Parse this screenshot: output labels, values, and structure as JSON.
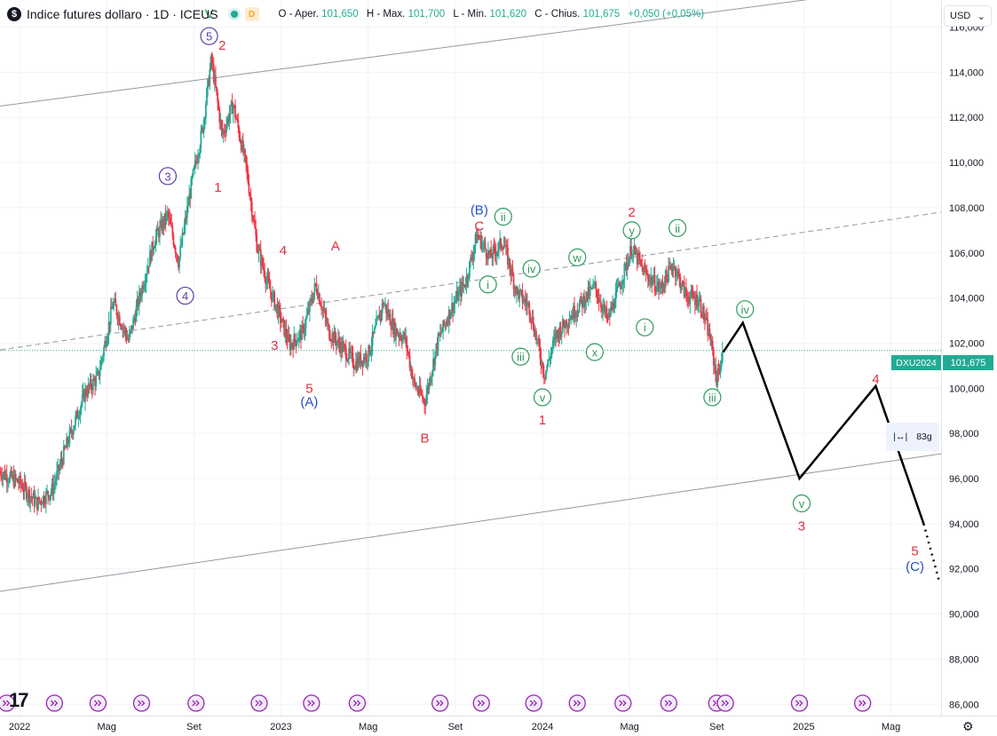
{
  "legend": {
    "symbol_badge": "$",
    "title": "Indice futures dollaro · 1D · ICEUS",
    "status_letter": "D",
    "open_label": "O - Aper.",
    "open_value": "101,650",
    "high_label": "H - Max.",
    "high_value": "101,700",
    "low_label": "L - Min.",
    "low_value": "101,620",
    "close_label": "C - Chius.",
    "close_value": "101,675",
    "change_value": "+0,050 (+0,05%)"
  },
  "currency_selector": "USD",
  "current_price_tag": "101,675",
  "symbol_tag": "DXU2024",
  "range_widget": {
    "icon": "range-arrows-icon",
    "label": "83g"
  },
  "colors": {
    "up": "#22ab94",
    "down": "#f23645",
    "grid": "#f0f3fa",
    "wave_red": "#e0303f",
    "wave_purple": "#5b3fa8",
    "wave_green": "#2e9a5c",
    "wave_blue": "#2a4fc1",
    "projection": "#000000"
  },
  "chart_data": {
    "type": "candlestick",
    "title": "Indice futures dollaro",
    "interval": "1D",
    "exchange": "ICEUS",
    "ylim": [
      85500,
      117200
    ],
    "y_ticks": [
      "116,000",
      "114,000",
      "112,000",
      "110,000",
      "108,000",
      "106,000",
      "104,000",
      "102,000",
      "100,000",
      "98,000",
      "96,000",
      "94,000",
      "92,000",
      "90,000",
      "88,000",
      "86,000"
    ],
    "y_tick_values": [
      116000,
      114000,
      112000,
      110000,
      108000,
      106000,
      104000,
      102000,
      100000,
      98000,
      96000,
      94000,
      92000,
      90000,
      88000,
      86000
    ],
    "x_ticks": [
      {
        "label": "2022",
        "t": 0
      },
      {
        "label": "Mag",
        "t": 4
      },
      {
        "label": "Set",
        "t": 8
      },
      {
        "label": "2023",
        "t": 12
      },
      {
        "label": "Mag",
        "t": 16
      },
      {
        "label": "Set",
        "t": 20
      },
      {
        "label": "2024",
        "t": 24
      },
      {
        "label": "Mag",
        "t": 28
      },
      {
        "label": "Set",
        "t": 32
      },
      {
        "label": "2025",
        "t": 36
      },
      {
        "label": "Mag",
        "t": 40
      }
    ],
    "x_unit": "months since 2022-01",
    "xlim": [
      -0.9,
      42.3
    ],
    "price_path": [
      [
        -0.9,
        96300
      ],
      [
        0.0,
        95800
      ],
      [
        0.8,
        94900
      ],
      [
        1.5,
        95500
      ],
      [
        2.2,
        97600
      ],
      [
        3.0,
        99800
      ],
      [
        3.6,
        100500
      ],
      [
        4.3,
        103800
      ],
      [
        5.0,
        102100
      ],
      [
        5.6,
        104400
      ],
      [
        6.2,
        106600
      ],
      [
        6.8,
        107700
      ],
      [
        7.3,
        105600
      ],
      [
        7.9,
        109100
      ],
      [
        8.4,
        111500
      ],
      [
        8.8,
        114600
      ],
      [
        9.3,
        111200
      ],
      [
        9.8,
        112600
      ],
      [
        10.4,
        109800
      ],
      [
        10.9,
        106300
      ],
      [
        11.4,
        104600
      ],
      [
        11.9,
        103300
      ],
      [
        12.4,
        101900
      ],
      [
        13.0,
        102500
      ],
      [
        13.6,
        104600
      ],
      [
        14.2,
        102500
      ],
      [
        14.8,
        101800
      ],
      [
        15.4,
        101100
      ],
      [
        16.0,
        101500
      ],
      [
        16.7,
        103800
      ],
      [
        17.2,
        102600
      ],
      [
        17.7,
        102200
      ],
      [
        18.1,
        100200
      ],
      [
        18.6,
        99400
      ],
      [
        19.2,
        102100
      ],
      [
        19.8,
        103500
      ],
      [
        20.5,
        104800
      ],
      [
        21.0,
        106800
      ],
      [
        21.6,
        105800
      ],
      [
        22.2,
        106500
      ],
      [
        22.8,
        104300
      ],
      [
        23.4,
        103600
      ],
      [
        24.1,
        100600
      ],
      [
        24.6,
        102300
      ],
      [
        25.2,
        103100
      ],
      [
        25.8,
        103800
      ],
      [
        26.4,
        104500
      ],
      [
        27.0,
        103000
      ],
      [
        27.6,
        104700
      ],
      [
        28.1,
        106200
      ],
      [
        28.7,
        105100
      ],
      [
        29.4,
        104400
      ],
      [
        30.0,
        105500
      ],
      [
        30.6,
        104100
      ],
      [
        31.2,
        103900
      ],
      [
        31.7,
        102200
      ],
      [
        32.0,
        100400
      ],
      [
        32.3,
        101600
      ]
    ],
    "projection": [
      {
        "t": 32.3,
        "v": 101600
      },
      {
        "t": 33.2,
        "v": 102900
      },
      {
        "t": 35.8,
        "v": 96000
      },
      {
        "t": 39.3,
        "v": 100100
      },
      {
        "t": 41.5,
        "v": 94000
      }
    ],
    "projection_dotted_end": {
      "t": 42.2,
      "v": 91500
    },
    "channel_upper": {
      "from": {
        "t": -0.9,
        "v": 112500
      },
      "to": {
        "t": 42.3,
        "v": 118000
      }
    },
    "channel_lower": {
      "from": {
        "t": -0.9,
        "v": 91000
      },
      "to": {
        "t": 42.3,
        "v": 97100
      }
    },
    "channel_mid_dashed": {
      "from": {
        "t": -0.9,
        "v": 101700
      },
      "to": {
        "t": 42.3,
        "v": 107800
      }
    },
    "current_price_value": 101675,
    "wave_labels": [
      {
        "text": "V",
        "t": 8.7,
        "v": 116600,
        "color": "wave_green",
        "circle": false
      },
      {
        "text": "5",
        "t": 8.7,
        "v": 115600,
        "color": "wave_purple",
        "circle": true
      },
      {
        "text": "2",
        "t": 9.3,
        "v": 115200,
        "color": "wave_red",
        "circle": false
      },
      {
        "text": "3",
        "t": 6.8,
        "v": 109400,
        "color": "wave_purple",
        "circle": true
      },
      {
        "text": "1",
        "t": 9.1,
        "v": 108900,
        "color": "wave_red",
        "circle": false
      },
      {
        "text": "4",
        "t": 7.6,
        "v": 104100,
        "color": "wave_purple",
        "circle": true
      },
      {
        "text": "4",
        "t": 12.1,
        "v": 106100,
        "color": "wave_red",
        "circle": false
      },
      {
        "text": "3",
        "t": 11.7,
        "v": 101900,
        "color": "wave_red",
        "circle": false
      },
      {
        "text": "5",
        "t": 13.3,
        "v": 100000,
        "color": "wave_red",
        "circle": false
      },
      {
        "text": "(A)",
        "t": 13.3,
        "v": 99400,
        "color": "wave_blue",
        "circle": false
      },
      {
        "text": "A",
        "t": 14.5,
        "v": 106300,
        "color": "wave_red",
        "circle": false
      },
      {
        "text": "B",
        "t": 18.6,
        "v": 97800,
        "color": "wave_red",
        "circle": false
      },
      {
        "text": "(B)",
        "t": 21.1,
        "v": 107900,
        "color": "wave_blue",
        "circle": false
      },
      {
        "text": "C",
        "t": 21.1,
        "v": 107200,
        "color": "wave_red",
        "circle": false
      },
      {
        "text": "ii",
        "t": 22.2,
        "v": 107600,
        "color": "wave_green",
        "circle": true
      },
      {
        "text": "i",
        "t": 21.5,
        "v": 104600,
        "color": "wave_green",
        "circle": true
      },
      {
        "text": "iv",
        "t": 23.5,
        "v": 105300,
        "color": "wave_green",
        "circle": true
      },
      {
        "text": "iii",
        "t": 23.0,
        "v": 101400,
        "color": "wave_green",
        "circle": true
      },
      {
        "text": "v",
        "t": 24.0,
        "v": 99600,
        "color": "wave_green",
        "circle": true
      },
      {
        "text": "1",
        "t": 24.0,
        "v": 98600,
        "color": "wave_red",
        "circle": false
      },
      {
        "text": "w",
        "t": 25.6,
        "v": 105800,
        "color": "wave_green",
        "circle": true
      },
      {
        "text": "x",
        "t": 26.4,
        "v": 101600,
        "color": "wave_green",
        "circle": true
      },
      {
        "text": "2",
        "t": 28.1,
        "v": 107800,
        "color": "wave_red",
        "circle": false
      },
      {
        "text": "y",
        "t": 28.1,
        "v": 107000,
        "color": "wave_green",
        "circle": true
      },
      {
        "text": "ii",
        "t": 30.2,
        "v": 107100,
        "color": "wave_green",
        "circle": true
      },
      {
        "text": "i",
        "t": 28.7,
        "v": 102700,
        "color": "wave_green",
        "circle": true
      },
      {
        "text": "iv",
        "t": 33.3,
        "v": 103500,
        "color": "wave_green",
        "circle": true
      },
      {
        "text": "iii",
        "t": 31.8,
        "v": 99600,
        "color": "wave_green",
        "circle": true
      },
      {
        "text": "v",
        "t": 35.9,
        "v": 94900,
        "color": "wave_green",
        "circle": true
      },
      {
        "text": "3",
        "t": 35.9,
        "v": 93900,
        "color": "wave_red",
        "circle": false
      },
      {
        "text": "4",
        "t": 39.3,
        "v": 100400,
        "color": "wave_red",
        "circle": false
      },
      {
        "text": "5",
        "t": 41.1,
        "v": 92800,
        "color": "wave_red",
        "circle": false
      },
      {
        "text": "(C)",
        "t": 41.1,
        "v": 92100,
        "color": "wave_blue",
        "circle": false
      }
    ],
    "event_markers_t": [
      -0.6,
      1.6,
      3.6,
      5.6,
      8.1,
      11.0,
      13.4,
      15.5,
      19.3,
      21.2,
      23.6,
      25.6,
      27.7,
      29.8,
      32.0,
      32.4,
      35.8,
      38.7
    ]
  }
}
